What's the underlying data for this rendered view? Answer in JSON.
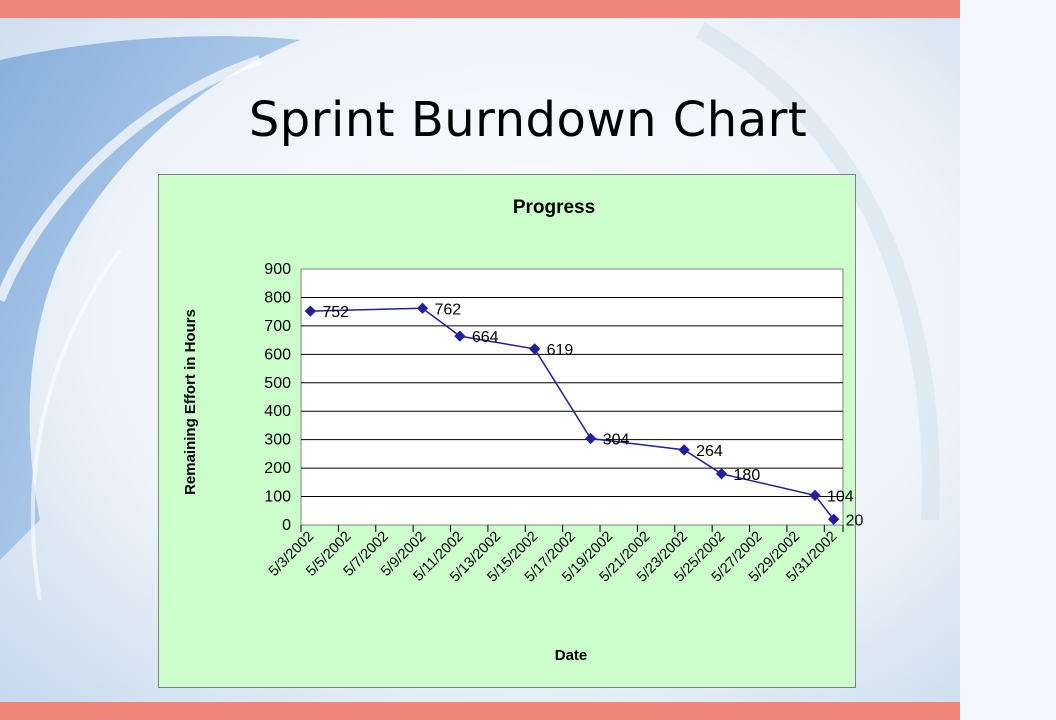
{
  "slide": {
    "title": "Sprint Burndown Chart",
    "accent_color": "#f1857a",
    "chart_background": "#ccffcc",
    "series_color": "#1f1fa0"
  },
  "chart_data": {
    "type": "line",
    "title": "Progress",
    "xlabel": "Date",
    "ylabel": "Remaining Effort in Hours",
    "ylim": [
      0,
      900
    ],
    "yticks": [
      0,
      100,
      200,
      300,
      400,
      500,
      600,
      700,
      800,
      900
    ],
    "grid": "horizontal",
    "categories": [
      "5/3/2002",
      "5/5/2002",
      "5/7/2002",
      "5/9/2002",
      "5/11/2002",
      "5/13/2002",
      "5/15/2002",
      "5/17/2002",
      "5/19/2002",
      "5/21/2002",
      "5/23/2002",
      "5/25/2002",
      "5/27/2002",
      "5/29/2002",
      "5/31/2002"
    ],
    "points": [
      {
        "x": "5/3/2002",
        "y": 752,
        "label": "752"
      },
      {
        "x": "5/9/2002",
        "y": 762,
        "label": "762"
      },
      {
        "x": "5/11/2002",
        "y": 664,
        "label": "664"
      },
      {
        "x": "5/15/2002",
        "y": 619,
        "label": "619"
      },
      {
        "x": "5/18/2002",
        "y": 304,
        "label": "304"
      },
      {
        "x": "5/23/2002",
        "y": 264,
        "label": "264"
      },
      {
        "x": "5/25/2002",
        "y": 180,
        "label": "180"
      },
      {
        "x": "5/30/2002",
        "y": 104,
        "label": "104"
      },
      {
        "x": "5/31/2002",
        "y": 20,
        "label": "20"
      }
    ]
  }
}
